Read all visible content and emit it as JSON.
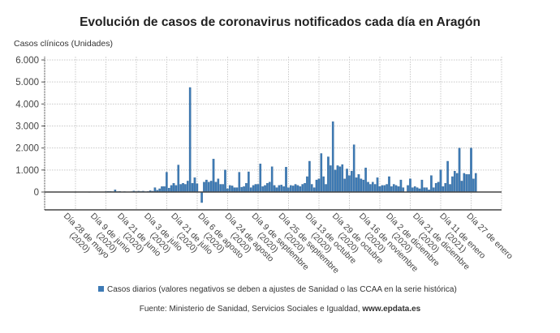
{
  "chart_data": {
    "type": "bar",
    "title": "Evolución de casos de coronavirus notificados cada día en Aragón",
    "ylabel": "Casos clínicos (Unidades)",
    "ylim": [
      -800,
      6000
    ],
    "yticks": [
      0,
      1000,
      2000,
      3000,
      4000,
      5000,
      6000
    ],
    "ytick_labels": [
      "0",
      "1.000",
      "2.000",
      "3.000",
      "4.000",
      "5.000",
      "6.000"
    ],
    "grid": true,
    "legend_position": "bottom",
    "x_tick_labels": [
      [
        "Día 28 de mayo",
        "(2020)"
      ],
      [
        "Día 9 de junio",
        "(2020)"
      ],
      [
        "Día 21 de junio",
        "(2020)"
      ],
      [
        "Día 3 de julio",
        "(2020)"
      ],
      [
        "Día 21 de julio",
        "(2020)"
      ],
      [
        "Día 6 de agosto",
        "(2020)"
      ],
      [
        "Día 24 de agosto",
        "(2020)"
      ],
      [
        "Día 9 de septiembre",
        "(2020)"
      ],
      [
        "Día 25 de septiembre",
        "(2020)"
      ],
      [
        "Día 13 de octubre",
        "(2020)"
      ],
      [
        "Día 29 de octubre",
        "(2020)"
      ],
      [
        "Día 16 de noviembre",
        "(2020)"
      ],
      [
        "Día 2 de diciembre",
        "(2020)"
      ],
      [
        "Día 21 de diciembre",
        "(2020)"
      ],
      [
        "Día 11 de enero",
        "(2021)"
      ],
      [
        "Día 27 de enero",
        ""
      ]
    ],
    "series": [
      {
        "name": "Casos diarios (valores negativos se deben a ajustes de Sanidad o las CCAA en la serie histórica)",
        "color": "#3d7ab5",
        "values": [
          0,
          0,
          0,
          0,
          0,
          0,
          0,
          0,
          0,
          10,
          0,
          0,
          5,
          0,
          10,
          0,
          0,
          0,
          5,
          0,
          0,
          0,
          0,
          0,
          10,
          20,
          30,
          30,
          20,
          100,
          20,
          30,
          10,
          20,
          10,
          10,
          20,
          50,
          20,
          40,
          30,
          40,
          20,
          30,
          60,
          40,
          200,
          80,
          150,
          250,
          250,
          900,
          180,
          300,
          400,
          300,
          1230,
          350,
          400,
          350,
          500,
          4750,
          400,
          650,
          380,
          0,
          -480,
          450,
          550,
          450,
          500,
          1500,
          450,
          600,
          350,
          350,
          1000,
          150,
          300,
          280,
          200,
          200,
          900,
          220,
          250,
          400,
          920,
          200,
          300,
          350,
          350,
          1280,
          250,
          300,
          400,
          450,
          1150,
          300,
          200,
          300,
          320,
          250,
          1130,
          200,
          300,
          280,
          350,
          300,
          250,
          350,
          400,
          700,
          1400,
          350,
          200,
          550,
          600,
          1750,
          700,
          350,
          1600,
          1200,
          3200,
          1000,
          1200,
          1150,
          1250,
          600,
          1050,
          750,
          950,
          2150,
          650,
          800,
          600,
          550,
          1100,
          450,
          350,
          450,
          350,
          650,
          250,
          300,
          300,
          350,
          700,
          250,
          350,
          300,
          250,
          550,
          200,
          0,
          300,
          600,
          200,
          250,
          200,
          150,
          550,
          200,
          200,
          100,
          750,
          200,
          400,
          450,
          1000,
          250,
          400,
          1400,
          350,
          700,
          950,
          850,
          2000,
          500,
          850,
          800,
          800,
          2000,
          600,
          850
        ]
      }
    ]
  },
  "source": {
    "prefix": "Fuente: Ministerio de Sanidad, Servicios Sociales e Igualdad, ",
    "link": "www.epdata.es"
  }
}
